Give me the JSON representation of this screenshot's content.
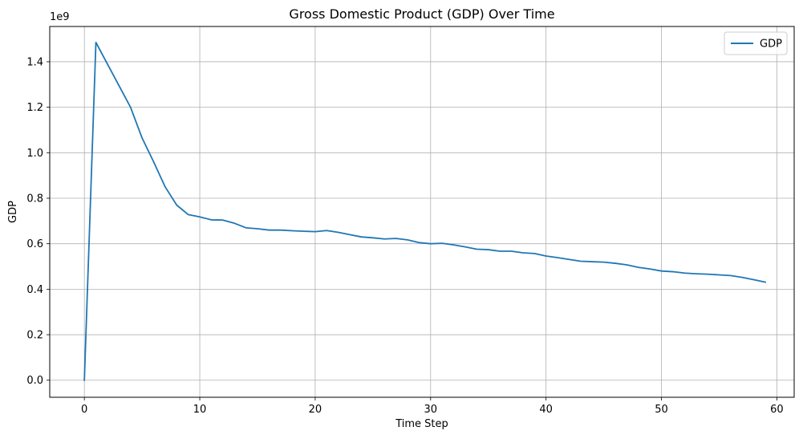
{
  "chart_data": {
    "type": "line",
    "title": "Gross Domestic Product (GDP) Over Time",
    "xlabel": "Time Step",
    "ylabel": "GDP",
    "y_offset_label": "1e9",
    "xlim": [
      -3,
      61.5
    ],
    "ylim": [
      -0.075,
      1.555
    ],
    "y_scale_note": "values in units of 1e9",
    "x_ticks": [
      0,
      10,
      20,
      30,
      40,
      50,
      60
    ],
    "y_ticks": [
      0.0,
      0.2,
      0.4,
      0.6,
      0.8,
      1.0,
      1.2,
      1.4
    ],
    "x_tick_labels": [
      "0",
      "10",
      "20",
      "30",
      "40",
      "50",
      "60"
    ],
    "y_tick_labels": [
      "0.0",
      "0.2",
      "0.4",
      "0.6",
      "0.8",
      "1.0",
      "1.2",
      "1.4"
    ],
    "grid": true,
    "legend_position": "top-right",
    "line_color": "#1f77b4",
    "series": [
      {
        "name": "GDP",
        "x": [
          0,
          1,
          2,
          3,
          4,
          5,
          6,
          7,
          8,
          9,
          10,
          11,
          12,
          13,
          14,
          15,
          16,
          17,
          18,
          19,
          20,
          21,
          22,
          23,
          24,
          25,
          26,
          27,
          28,
          29,
          30,
          31,
          32,
          33,
          34,
          35,
          36,
          37,
          38,
          39,
          40,
          41,
          42,
          43,
          44,
          45,
          46,
          47,
          48,
          49,
          50,
          51,
          52,
          53,
          54,
          55,
          56,
          57,
          58,
          59
        ],
        "values": [
          0.0,
          1.485,
          1.39,
          1.295,
          1.2,
          1.065,
          0.96,
          0.85,
          0.77,
          0.728,
          0.718,
          0.705,
          0.704,
          0.69,
          0.67,
          0.666,
          0.66,
          0.66,
          0.657,
          0.655,
          0.653,
          0.658,
          0.65,
          0.64,
          0.63,
          0.626,
          0.621,
          0.623,
          0.617,
          0.605,
          0.6,
          0.602,
          0.595,
          0.586,
          0.576,
          0.574,
          0.567,
          0.567,
          0.56,
          0.557,
          0.546,
          0.539,
          0.531,
          0.523,
          0.521,
          0.519,
          0.514,
          0.507,
          0.496,
          0.489,
          0.48,
          0.477,
          0.471,
          0.468,
          0.466,
          0.463,
          0.46,
          0.452,
          0.442,
          0.431
        ]
      }
    ]
  }
}
